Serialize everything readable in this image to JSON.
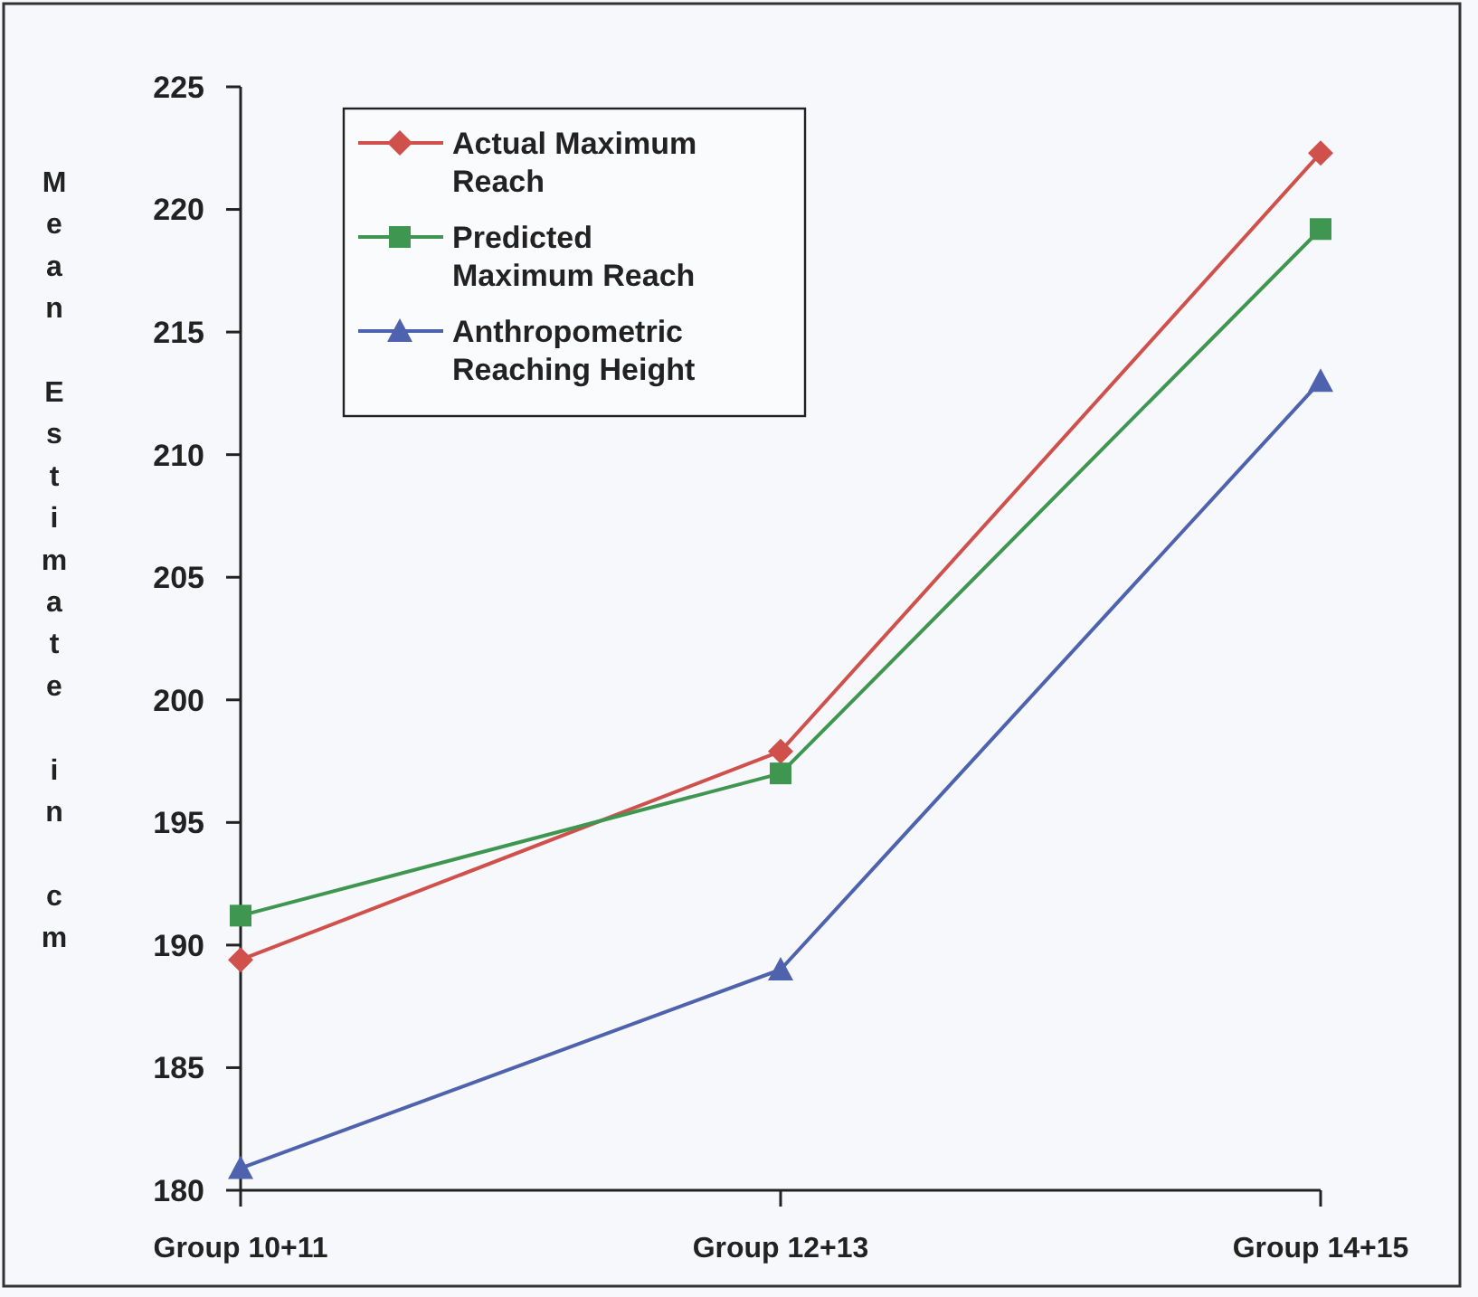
{
  "chart_data": {
    "type": "line",
    "ylabel": "Mean Estimate in cm",
    "categories": [
      "Group 10+11",
      "Group 12+13",
      "Group 14+15"
    ],
    "ylim": [
      180,
      225
    ],
    "yticks": [
      180,
      185,
      190,
      195,
      200,
      205,
      210,
      215,
      220,
      225
    ],
    "grid": false,
    "legend": "top left",
    "series": [
      {
        "name": "Actual Maximum Reach",
        "color": "#d0504c",
        "marker": "diamond",
        "values": [
          189.4,
          197.9,
          222.3
        ]
      },
      {
        "name": "Predicted Maximum Reach",
        "color": "#3f9650",
        "marker": "square",
        "values": [
          191.2,
          197.0,
          219.2
        ]
      },
      {
        "name": "Anthropometric Reaching Height",
        "color": "#4f62ad",
        "marker": "triangle",
        "values": [
          180.9,
          189.0,
          213.0
        ]
      }
    ]
  }
}
